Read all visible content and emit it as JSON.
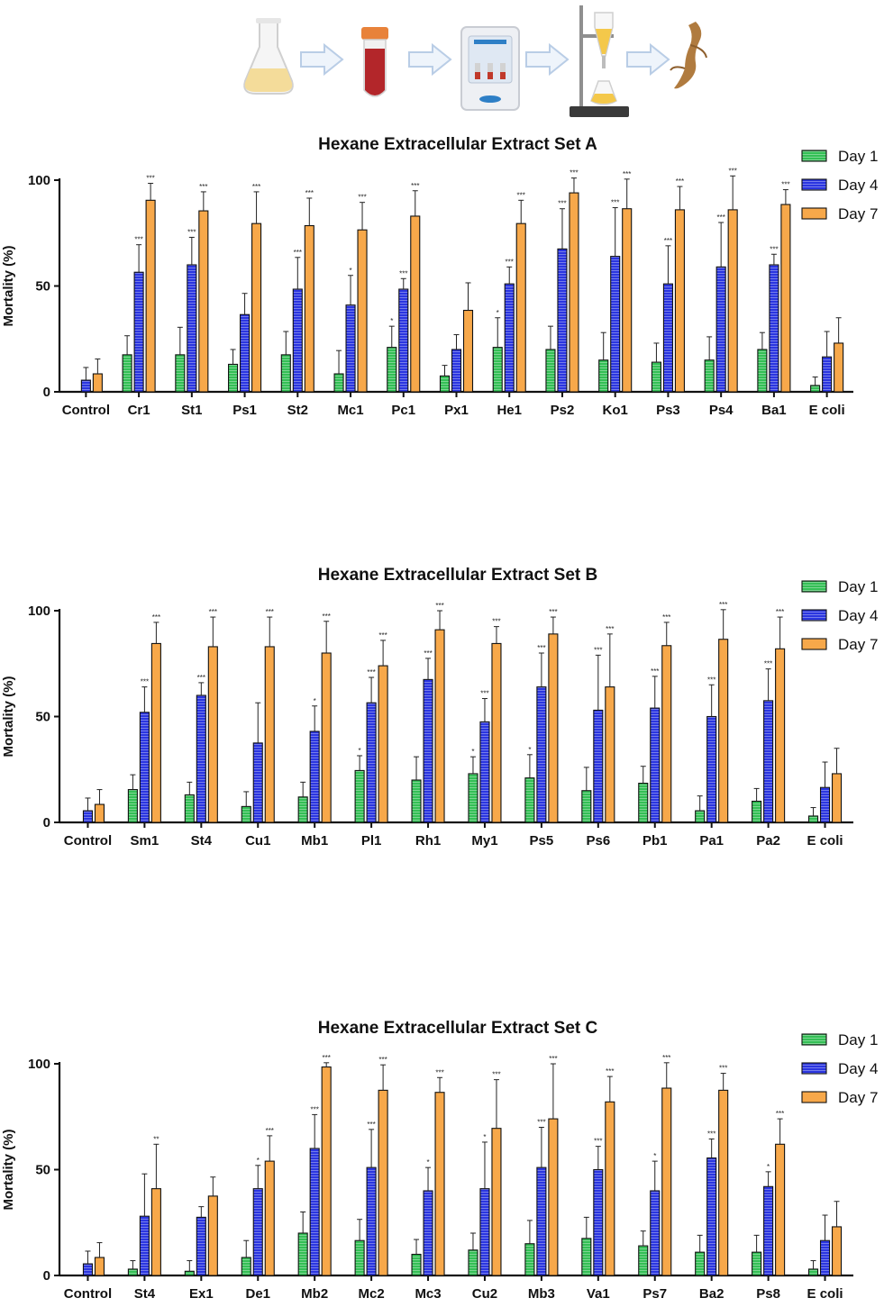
{
  "workflow": {
    "steps": [
      "flask-icon",
      "tube-icon",
      "incubator-icon",
      "separatory-funnel-icon",
      "root-icon"
    ],
    "arrow_icon": "arrow-right-icon"
  },
  "legend": [
    {
      "label": "Day 1",
      "color": "#33bf55"
    },
    {
      "label": "Day 4",
      "color": "#2a35e0"
    },
    {
      "label": "Day 7",
      "color": "#f7a84a"
    }
  ],
  "chart_data": [
    {
      "type": "bar",
      "title": "Hexane Extracellular Extract Set A",
      "ylabel": "Mortality (%)",
      "ylim": [
        0,
        100
      ],
      "yticks": [
        "0",
        "50",
        "100"
      ],
      "categories": [
        "Control",
        "Cr1",
        "St1",
        "Ps1",
        "St2",
        "Mc1",
        "Pc1",
        "Px1",
        "He1",
        "Ps2",
        "Ko1",
        "Ps3",
        "Ps4",
        "Ba1",
        "E coli"
      ],
      "series": [
        {
          "name": "Day 1",
          "values": [
            0,
            17.5,
            17.5,
            13,
            17.5,
            8.5,
            21,
            7.5,
            21,
            20,
            15,
            14,
            15,
            20,
            3
          ],
          "errors": [
            0,
            9,
            13,
            7,
            11,
            11,
            10,
            5,
            14,
            11,
            13,
            9,
            11,
            8,
            4
          ],
          "stars": [
            "",
            "",
            "",
            "",
            "",
            "",
            "*",
            "",
            "*",
            "",
            "",
            "",
            "",
            "",
            ""
          ]
        },
        {
          "name": "Day 4",
          "values": [
            5.5,
            56.5,
            60,
            36.5,
            48.5,
            41,
            48.5,
            20,
            51,
            67.5,
            64,
            51,
            59,
            60,
            16.5
          ],
          "errors": [
            6,
            13,
            13,
            10,
            15,
            14,
            5,
            7,
            8,
            19,
            23,
            18,
            21,
            5,
            12
          ],
          "stars": [
            "",
            "***",
            "***",
            "",
            "***",
            "*",
            "***",
            "",
            "***",
            "***",
            "***",
            "***",
            "***",
            "***",
            ""
          ]
        },
        {
          "name": "Day 7",
          "values": [
            8.5,
            90.5,
            85.5,
            79.5,
            78.5,
            76.5,
            83,
            38.5,
            79.5,
            94,
            86.5,
            86,
            86,
            88.5,
            23
          ],
          "errors": [
            7,
            8,
            9,
            15,
            13,
            13,
            12,
            13,
            11,
            7,
            14,
            11,
            16,
            7,
            12
          ],
          "stars": [
            "",
            "***",
            "***",
            "***",
            "***",
            "***",
            "***",
            "",
            "***",
            "***",
            "***",
            "***",
            "***",
            "***",
            ""
          ]
        }
      ]
    },
    {
      "type": "bar",
      "title": "Hexane Extracellular Extract Set B",
      "ylabel": "Mortality (%)",
      "ylim": [
        0,
        100
      ],
      "yticks": [
        "0",
        "50",
        "100"
      ],
      "categories": [
        "Control",
        "Sm1",
        "St4",
        "Cu1",
        "Mb1",
        "Pl1",
        "Rh1",
        "My1",
        "Ps5",
        "Ps6",
        "Pb1",
        "Pa1",
        "Pa2",
        "E coli"
      ],
      "series": [
        {
          "name": "Day 1",
          "values": [
            0,
            15.5,
            13,
            7.5,
            12,
            24.5,
            20,
            23,
            21,
            15,
            18.5,
            5.5,
            10,
            3
          ],
          "errors": [
            0,
            7,
            6,
            7,
            7,
            7,
            11,
            8,
            11,
            11,
            8,
            7,
            6,
            4
          ],
          "stars": [
            "",
            "",
            "",
            "",
            "",
            "*",
            "",
            "*",
            "*",
            "",
            "",
            "",
            "",
            ""
          ]
        },
        {
          "name": "Day 4",
          "values": [
            5.5,
            52,
            60,
            37.5,
            43,
            56.5,
            67.5,
            47.5,
            64,
            53,
            54,
            50,
            57.5,
            16.5
          ],
          "errors": [
            6,
            12,
            6,
            19,
            12,
            12,
            10,
            11,
            16,
            26,
            15,
            15,
            15,
            12
          ],
          "stars": [
            "",
            "***",
            "***",
            "",
            "*",
            "***",
            "***",
            "***",
            "***",
            "***",
            "***",
            "***",
            "***",
            ""
          ]
        },
        {
          "name": "Day 7",
          "values": [
            8.5,
            84.5,
            83,
            83,
            80,
            74,
            91,
            84.5,
            89,
            64,
            83.5,
            86.5,
            82,
            23
          ],
          "errors": [
            7,
            10,
            14,
            14,
            15,
            12,
            9,
            8,
            8,
            25,
            11,
            14,
            15,
            12
          ],
          "stars": [
            "",
            "***",
            "***",
            "***",
            "***",
            "***",
            "***",
            "***",
            "***",
            "***",
            "***",
            "***",
            "***",
            ""
          ]
        }
      ]
    },
    {
      "type": "bar",
      "title": "Hexane Extracellular Extract Set C",
      "ylabel": "Mortality (%)",
      "ylim": [
        0,
        100
      ],
      "yticks": [
        "0",
        "50",
        "100"
      ],
      "categories": [
        "Control",
        "St4",
        "Ex1",
        "De1",
        "Mb2",
        "Mc2",
        "Mc3",
        "Cu2",
        "Mb3",
        "Va1",
        "Ps7",
        "Ba2",
        "Ps8",
        "E coli"
      ],
      "series": [
        {
          "name": "Day 1",
          "values": [
            0,
            3,
            2,
            8.5,
            20,
            16.5,
            10,
            12,
            15,
            17.5,
            14,
            11,
            11,
            3
          ],
          "errors": [
            0,
            4,
            5,
            8,
            10,
            10,
            7,
            8,
            11,
            10,
            7,
            8,
            8,
            4
          ],
          "stars": [
            "",
            "",
            "",
            "",
            "",
            "",
            "",
            "",
            "",
            "",
            "",
            "",
            "",
            ""
          ]
        },
        {
          "name": "Day 4",
          "values": [
            5.5,
            28,
            27.5,
            41,
            60,
            51,
            40,
            41,
            51,
            50,
            40,
            55.5,
            42,
            16.5
          ],
          "errors": [
            6,
            20,
            5,
            11,
            16,
            18,
            11,
            22,
            19,
            11,
            14,
            9,
            7,
            12
          ],
          "stars": [
            "",
            "",
            "",
            "*",
            "***",
            "***",
            "*",
            "*",
            "***",
            "***",
            "*",
            "***",
            "*",
            ""
          ]
        },
        {
          "name": "Day 7",
          "values": [
            8.5,
            41,
            37.5,
            54,
            98.5,
            87.5,
            86.5,
            69.5,
            74,
            82,
            88.5,
            87.5,
            62,
            23
          ],
          "errors": [
            7,
            21,
            9,
            12,
            2,
            12,
            7,
            23,
            26,
            12,
            12,
            8,
            12,
            12
          ],
          "stars": [
            "",
            "**",
            "",
            "***",
            "***",
            "***",
            "***",
            "***",
            "***",
            "***",
            "***",
            "***",
            "***",
            ""
          ]
        }
      ]
    }
  ]
}
